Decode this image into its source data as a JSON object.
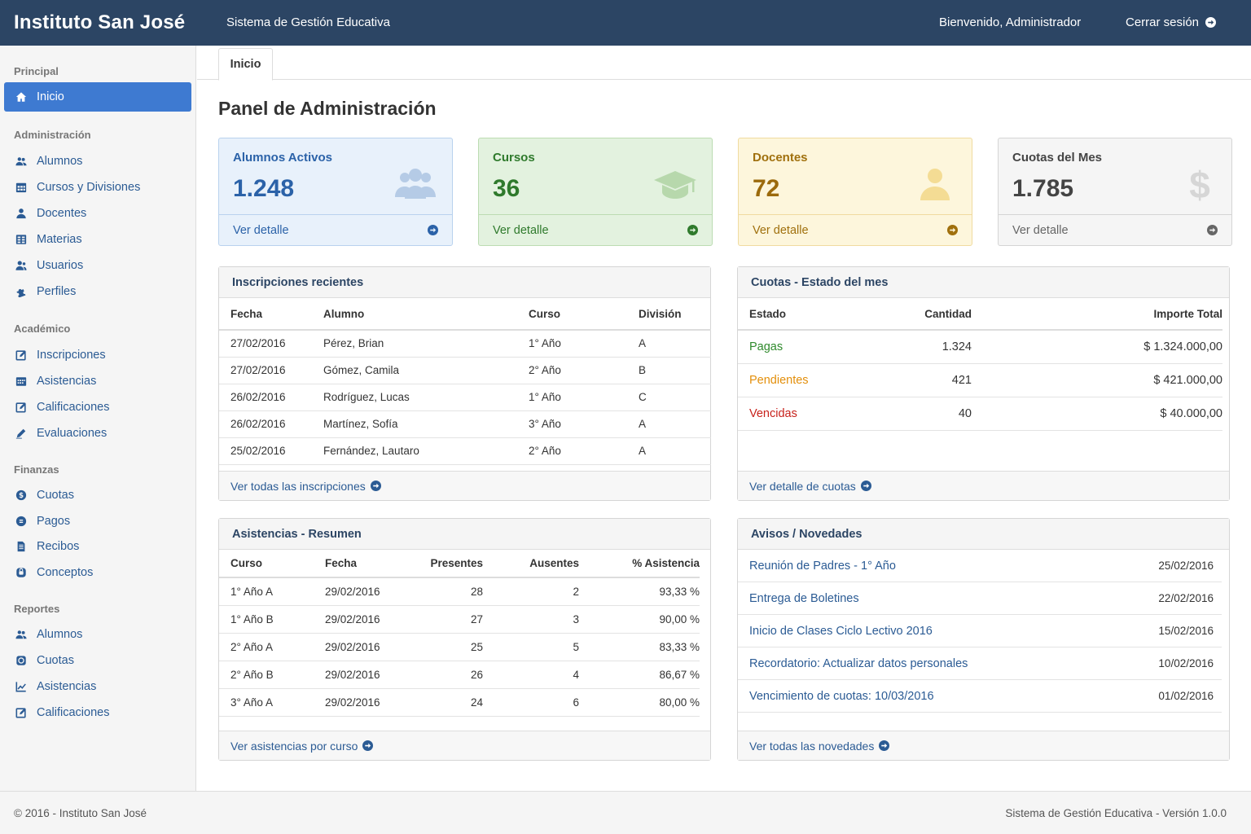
{
  "header": {
    "brand": "Instituto San José",
    "system_title": "Sistema de Gestión Educativa",
    "welcome": "Bienvenido, Administrador",
    "logout": "Cerrar sesión"
  },
  "sidebar": {
    "principal": {
      "title": "Principal",
      "items": [
        {
          "label": "Inicio",
          "icon": "home-icon"
        }
      ]
    },
    "administracion": {
      "title": "Administración",
      "items": [
        {
          "label": "Alumnos",
          "icon": "users-icon"
        },
        {
          "label": "Cursos y Divisiones",
          "icon": "calendar-grid-icon"
        },
        {
          "label": "Docentes",
          "icon": "user-icon"
        },
        {
          "label": "Materias",
          "icon": "grid-icon"
        },
        {
          "label": "Usuarios",
          "icon": "user-group-icon"
        },
        {
          "label": "Perfiles",
          "icon": "puzzle-icon"
        }
      ]
    },
    "academico": {
      "title": "Académico",
      "items": [
        {
          "label": "Inscripciones",
          "icon": "edit-icon"
        },
        {
          "label": "Asistencias",
          "icon": "calendar-icon"
        },
        {
          "label": "Calificaciones",
          "icon": "edit-icon"
        },
        {
          "label": "Evaluaciones",
          "icon": "pencil-icon"
        }
      ]
    },
    "finanzas": {
      "title": "Finanzas",
      "items": [
        {
          "label": "Cuotas",
          "icon": "coin-icon"
        },
        {
          "label": "Pagos",
          "icon": "money-icon"
        },
        {
          "label": "Recibos",
          "icon": "document-icon"
        },
        {
          "label": "Conceptos",
          "icon": "tag-icon"
        }
      ]
    },
    "reportes": {
      "title": "Reportes",
      "items": [
        {
          "label": "Alumnos",
          "icon": "users-icon"
        },
        {
          "label": "Cuotas",
          "icon": "coin-icon"
        },
        {
          "label": "Asistencias",
          "icon": "line-chart-icon"
        },
        {
          "label": "Calificaciones",
          "icon": "edit-icon"
        }
      ]
    }
  },
  "tabs": {
    "active": "Inicio"
  },
  "page_title": "Panel de Administración",
  "cards": [
    {
      "title": "Alumnos Activos",
      "value": "1.248",
      "footer": "Ver detalle",
      "icon": "users-icon",
      "color": "#2b62a8"
    },
    {
      "title": "Cursos",
      "value": "36",
      "footer": "Ver detalle",
      "icon": "graduation-cap-icon",
      "color": "#2f7a2c"
    },
    {
      "title": "Docentes",
      "value": "72",
      "footer": "Ver detalle",
      "icon": "user-icon",
      "color": "#a0700d"
    },
    {
      "title": "Cuotas del Mes",
      "value": "1.785",
      "footer": "Ver detalle",
      "icon": "dollar-icon",
      "color": "#444444"
    }
  ],
  "inscripciones": {
    "title": "Inscripciones recientes",
    "headers": [
      "Fecha",
      "Alumno",
      "Curso",
      "División"
    ],
    "rows": [
      [
        "27/02/2016",
        "Pérez, Brian",
        "1° Año",
        "A"
      ],
      [
        "27/02/2016",
        "Gómez, Camila",
        "2° Año",
        "B"
      ],
      [
        "26/02/2016",
        "Rodríguez, Lucas",
        "1° Año",
        "C"
      ],
      [
        "26/02/2016",
        "Martínez, Sofía",
        "3° Año",
        "A"
      ],
      [
        "25/02/2016",
        "Fernández, Lautaro",
        "2° Año",
        "A"
      ]
    ],
    "footer": "Ver todas las inscripciones"
  },
  "cuotas": {
    "title": "Cuotas - Estado del mes",
    "headers": [
      "Estado",
      "Cantidad",
      "Importe Total"
    ],
    "rows": [
      {
        "estado": "Pagas",
        "cantidad": "1.324",
        "importe": "$ 1.324.000,00",
        "color": "#2f8a2c"
      },
      {
        "estado": "Pendientes",
        "cantidad": "421",
        "importe": "$ 421.000,00",
        "color": "#e38f0b"
      },
      {
        "estado": "Vencidas",
        "cantidad": "40",
        "importe": "$ 40.000,00",
        "color": "#c7221c"
      }
    ],
    "footer": "Ver detalle de cuotas"
  },
  "asistencias": {
    "title": "Asistencias - Resumen",
    "headers": [
      "Curso",
      "Fecha",
      "Presentes",
      "Ausentes",
      "% Asistencia"
    ],
    "rows": [
      [
        "1° Año A",
        "29/02/2016",
        "28",
        "2",
        "93,33 %"
      ],
      [
        "1° Año B",
        "29/02/2016",
        "27",
        "3",
        "90,00 %"
      ],
      [
        "2° Año A",
        "29/02/2016",
        "25",
        "5",
        "83,33 %"
      ],
      [
        "2° Año B",
        "29/02/2016",
        "26",
        "4",
        "86,67 %"
      ],
      [
        "3° Año A",
        "29/02/2016",
        "24",
        "6",
        "80,00 %"
      ]
    ],
    "footer": "Ver asistencias por curso"
  },
  "avisos": {
    "title": "Avisos / Novedades",
    "items": [
      {
        "title": "Reunión de Padres - 1° Año",
        "date": "25/02/2016"
      },
      {
        "title": "Entrega de Boletines",
        "date": "22/02/2016"
      },
      {
        "title": "Inicio de Clases Ciclo Lectivo 2016",
        "date": "15/02/2016"
      },
      {
        "title": "Recordatorio: Actualizar datos personales",
        "date": "10/02/2016"
      },
      {
        "title": "Vencimiento de cuotas: 10/03/2016",
        "date": "01/02/2016"
      }
    ],
    "footer": "Ver todas las novedades"
  },
  "footer": {
    "left": "© 2016 - Instituto San José",
    "right": "Sistema de Gestión Educativa - Versión 1.0.0"
  }
}
